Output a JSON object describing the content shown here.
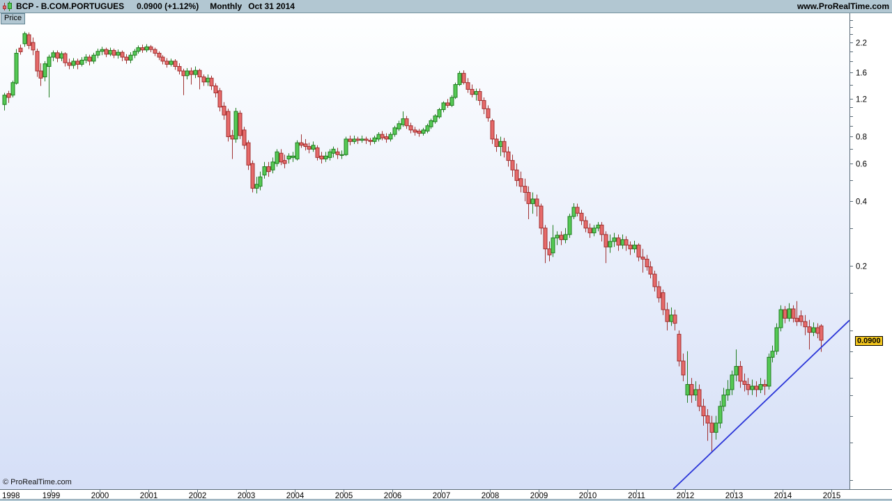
{
  "header": {
    "symbol_title": "BCP - B.COM.PORTUGUES",
    "last_price": "0.0900",
    "change": "(+1.12%)",
    "timeframe": "Monthly",
    "date_label": "Oct 31 2014",
    "site": "www.ProRealTime.com"
  },
  "price_tab": {
    "label": "Price"
  },
  "watermark": "© ProRealTime.com",
  "price_tag": {
    "value": "0.0900"
  },
  "colors": {
    "up_fill": "#55c955",
    "up_stroke": "#1f7d1f",
    "down_fill": "#e66a6a",
    "down_stroke": "#a03030",
    "trendline": "#2a35d8",
    "bar_bg": "#b2c7d2",
    "axis_line": "#5a6b77",
    "bg_top": "#feffff",
    "bg_bottom": "#d5dff7",
    "price_tag_bg": "#f0c41c"
  },
  "chart_data": {
    "type": "candlestick",
    "title": "BCP - B.COM.PORTUGUES",
    "timeframe": "Monthly",
    "scale": "logarithmic",
    "last": {
      "price": 0.09,
      "date": "Oct 31 2014",
      "change_pct": 1.12
    },
    "x_axis": {
      "start_year": 1998,
      "labels": [
        "1998",
        "1999",
        "2000",
        "2001",
        "2002",
        "2003",
        "2004",
        "2005",
        "2006",
        "2007",
        "2008",
        "2009",
        "2010",
        "2011",
        "2012",
        "2013",
        "2014",
        "2015"
      ]
    },
    "y_axis": {
      "ticks": [
        2.8,
        2.6,
        2.4,
        2.2,
        2.0,
        1.8,
        1.6,
        1.4,
        1.2,
        1.1,
        1.0,
        0.9,
        0.8,
        0.7,
        0.6,
        0.5,
        0.4,
        0.3,
        0.2,
        0.15,
        0.1,
        0.08,
        0.06,
        0.05,
        0.04,
        0.03,
        0.02
      ],
      "labeled_ticks": [
        "2.2",
        "1.6",
        "1.2",
        "0.8",
        "0.6",
        "0.4",
        "0.2"
      ]
    },
    "trendline": {
      "from": {
        "year": 2011.757,
        "price": 0.0182
      },
      "to": {
        "year": 2015.37,
        "price": 0.1115
      }
    },
    "ohlc_start": "1998-01",
    "ohlc": [
      [
        1.13,
        1.28,
        1.06,
        1.25
      ],
      [
        1.27,
        1.31,
        1.15,
        1.22
      ],
      [
        1.25,
        1.46,
        1.22,
        1.43
      ],
      [
        1.42,
        2.05,
        1.4,
        1.96
      ],
      [
        2.07,
        2.15,
        1.93,
        1.99
      ],
      [
        2.17,
        2.47,
        2.1,
        2.42
      ],
      [
        2.39,
        2.45,
        2.05,
        2.13
      ],
      [
        2.2,
        2.32,
        1.92,
        2.03
      ],
      [
        2.0,
        2.06,
        1.52,
        1.62
      ],
      [
        1.62,
        1.76,
        1.38,
        1.5
      ],
      [
        1.52,
        1.8,
        1.45,
        1.75
      ],
      [
        1.7,
        1.93,
        1.22,
        1.88
      ],
      [
        1.88,
        2.02,
        1.8,
        1.97
      ],
      [
        1.97,
        2.02,
        1.78,
        1.86
      ],
      [
        1.86,
        2.0,
        1.8,
        1.95
      ],
      [
        1.95,
        1.98,
        1.7,
        1.77
      ],
      [
        1.77,
        1.85,
        1.65,
        1.72
      ],
      [
        1.72,
        1.86,
        1.66,
        1.8
      ],
      [
        1.8,
        1.85,
        1.65,
        1.74
      ],
      [
        1.74,
        1.88,
        1.7,
        1.82
      ],
      [
        1.82,
        1.94,
        1.76,
        1.88
      ],
      [
        1.88,
        1.93,
        1.72,
        1.8
      ],
      [
        1.8,
        1.97,
        1.75,
        1.92
      ],
      [
        1.92,
        2.06,
        1.86,
        2.0
      ],
      [
        2.0,
        2.1,
        1.92,
        2.04
      ],
      [
        2.04,
        2.08,
        1.88,
        1.94
      ],
      [
        1.94,
        2.08,
        1.9,
        2.02
      ],
      [
        2.02,
        2.06,
        1.86,
        1.92
      ],
      [
        1.92,
        2.04,
        1.85,
        1.98
      ],
      [
        1.98,
        2.02,
        1.8,
        1.88
      ],
      [
        1.88,
        1.94,
        1.75,
        1.82
      ],
      [
        1.82,
        1.98,
        1.76,
        1.92
      ],
      [
        1.92,
        2.05,
        1.86,
        2.0
      ],
      [
        2.0,
        2.13,
        1.95,
        2.08
      ],
      [
        2.08,
        2.15,
        1.97,
        2.03
      ],
      [
        2.03,
        2.16,
        1.98,
        2.1
      ],
      [
        2.1,
        2.14,
        1.98,
        2.04
      ],
      [
        2.04,
        2.08,
        1.9,
        1.96
      ],
      [
        1.96,
        2.0,
        1.82,
        1.88
      ],
      [
        1.88,
        1.92,
        1.74,
        1.8
      ],
      [
        1.8,
        1.86,
        1.68,
        1.74
      ],
      [
        1.74,
        1.85,
        1.7,
        1.8
      ],
      [
        1.8,
        1.84,
        1.64,
        1.7
      ],
      [
        1.7,
        1.76,
        1.56,
        1.62
      ],
      [
        1.62,
        1.66,
        1.25,
        1.54
      ],
      [
        1.54,
        1.67,
        1.48,
        1.62
      ],
      [
        1.62,
        1.68,
        1.4,
        1.56
      ],
      [
        1.56,
        1.7,
        1.5,
        1.63
      ],
      [
        1.63,
        1.66,
        1.33,
        1.52
      ],
      [
        1.52,
        1.56,
        1.38,
        1.44
      ],
      [
        1.44,
        1.56,
        1.38,
        1.5
      ],
      [
        1.5,
        1.54,
        1.32,
        1.38
      ],
      [
        1.38,
        1.42,
        1.22,
        1.28
      ],
      [
        1.31,
        1.35,
        1.05,
        1.1
      ],
      [
        1.11,
        1.16,
        0.96,
        1.01
      ],
      [
        1.05,
        1.08,
        0.76,
        0.8
      ],
      [
        0.81,
        0.86,
        0.63,
        0.78
      ],
      [
        0.78,
        1.09,
        0.75,
        1.05
      ],
      [
        1.03,
        1.06,
        0.78,
        0.81
      ],
      [
        0.86,
        0.89,
        0.7,
        0.73
      ],
      [
        0.75,
        0.77,
        0.56,
        0.59
      ],
      [
        0.6,
        0.62,
        0.44,
        0.46
      ],
      [
        0.46,
        0.52,
        0.435,
        0.48
      ],
      [
        0.47,
        0.55,
        0.45,
        0.52
      ],
      [
        0.53,
        0.61,
        0.51,
        0.58
      ],
      [
        0.58,
        0.61,
        0.52,
        0.55
      ],
      [
        0.56,
        0.64,
        0.54,
        0.61
      ],
      [
        0.6,
        0.7,
        0.58,
        0.68
      ],
      [
        0.67,
        0.7,
        0.59,
        0.61
      ],
      [
        0.62,
        0.66,
        0.57,
        0.6
      ],
      [
        0.63,
        0.67,
        0.6,
        0.65
      ],
      [
        0.64,
        0.68,
        0.61,
        0.65
      ],
      [
        0.63,
        0.77,
        0.62,
        0.75
      ],
      [
        0.75,
        0.82,
        0.71,
        0.73
      ],
      [
        0.74,
        0.78,
        0.69,
        0.72
      ],
      [
        0.72,
        0.75,
        0.67,
        0.7
      ],
      [
        0.7,
        0.76,
        0.68,
        0.73
      ],
      [
        0.71,
        0.73,
        0.62,
        0.64
      ],
      [
        0.65,
        0.68,
        0.6,
        0.63
      ],
      [
        0.63,
        0.68,
        0.61,
        0.65
      ],
      [
        0.64,
        0.7,
        0.62,
        0.68
      ],
      [
        0.67,
        0.72,
        0.64,
        0.7
      ],
      [
        0.68,
        0.71,
        0.63,
        0.66
      ],
      [
        0.66,
        0.69,
        0.63,
        0.66
      ],
      [
        0.66,
        0.8,
        0.65,
        0.78
      ],
      [
        0.78,
        0.81,
        0.73,
        0.76
      ],
      [
        0.76,
        0.81,
        0.74,
        0.78
      ],
      [
        0.78,
        0.8,
        0.74,
        0.77
      ],
      [
        0.77,
        0.81,
        0.75,
        0.78
      ],
      [
        0.78,
        0.8,
        0.74,
        0.77
      ],
      [
        0.77,
        0.79,
        0.73,
        0.76
      ],
      [
        0.76,
        0.81,
        0.74,
        0.79
      ],
      [
        0.78,
        0.84,
        0.76,
        0.82
      ],
      [
        0.82,
        0.85,
        0.77,
        0.79
      ],
      [
        0.8,
        0.83,
        0.75,
        0.78
      ],
      [
        0.78,
        0.84,
        0.76,
        0.82
      ],
      [
        0.82,
        0.9,
        0.8,
        0.88
      ],
      [
        0.87,
        0.95,
        0.85,
        0.92
      ],
      [
        0.91,
        1.05,
        0.89,
        0.97
      ],
      [
        0.97,
        1.0,
        0.87,
        0.9
      ],
      [
        0.9,
        0.93,
        0.83,
        0.86
      ],
      [
        0.86,
        0.89,
        0.81,
        0.84
      ],
      [
        0.85,
        0.87,
        0.8,
        0.83
      ],
      [
        0.83,
        0.88,
        0.81,
        0.86
      ],
      [
        0.85,
        0.92,
        0.83,
        0.9
      ],
      [
        0.89,
        0.97,
        0.87,
        0.95
      ],
      [
        0.94,
        1.02,
        0.92,
        1.0
      ],
      [
        0.99,
        1.09,
        0.97,
        1.07
      ],
      [
        1.07,
        1.17,
        1.04,
        1.15
      ],
      [
        1.15,
        1.2,
        1.09,
        1.12
      ],
      [
        1.12,
        1.25,
        1.1,
        1.22
      ],
      [
        1.22,
        1.43,
        1.2,
        1.4
      ],
      [
        1.4,
        1.62,
        1.38,
        1.58
      ],
      [
        1.58,
        1.63,
        1.4,
        1.43
      ],
      [
        1.43,
        1.5,
        1.28,
        1.33
      ],
      [
        1.33,
        1.4,
        1.22,
        1.26
      ],
      [
        1.26,
        1.34,
        1.18,
        1.3
      ],
      [
        1.3,
        1.34,
        1.12,
        1.18
      ],
      [
        1.18,
        1.22,
        1.02,
        1.08
      ],
      [
        1.08,
        1.12,
        0.94,
        0.98
      ],
      [
        0.95,
        0.97,
        0.74,
        0.78
      ],
      [
        0.78,
        0.82,
        0.68,
        0.72
      ],
      [
        0.72,
        0.8,
        0.65,
        0.76
      ],
      [
        0.76,
        0.79,
        0.64,
        0.68
      ],
      [
        0.68,
        0.72,
        0.58,
        0.62
      ],
      [
        0.62,
        0.66,
        0.52,
        0.56
      ],
      [
        0.56,
        0.6,
        0.47,
        0.5
      ],
      [
        0.51,
        0.55,
        0.44,
        0.47
      ],
      [
        0.47,
        0.51,
        0.4,
        0.44
      ],
      [
        0.44,
        0.47,
        0.33,
        0.39
      ],
      [
        0.39,
        0.44,
        0.35,
        0.41
      ],
      [
        0.41,
        0.43,
        0.34,
        0.38
      ],
      [
        0.38,
        0.39,
        0.28,
        0.3
      ],
      [
        0.3,
        0.31,
        0.206,
        0.24
      ],
      [
        0.24,
        0.26,
        0.21,
        0.225
      ],
      [
        0.23,
        0.31,
        0.22,
        0.27
      ],
      [
        0.27,
        0.29,
        0.25,
        0.278
      ],
      [
        0.278,
        0.29,
        0.25,
        0.265
      ],
      [
        0.265,
        0.3,
        0.255,
        0.28
      ],
      [
        0.28,
        0.35,
        0.27,
        0.34
      ],
      [
        0.34,
        0.392,
        0.33,
        0.375
      ],
      [
        0.375,
        0.39,
        0.34,
        0.352
      ],
      [
        0.352,
        0.365,
        0.31,
        0.325
      ],
      [
        0.325,
        0.34,
        0.287,
        0.3
      ],
      [
        0.3,
        0.315,
        0.27,
        0.285
      ],
      [
        0.285,
        0.31,
        0.275,
        0.3
      ],
      [
        0.3,
        0.32,
        0.29,
        0.31
      ],
      [
        0.31,
        0.32,
        0.26,
        0.28
      ],
      [
        0.28,
        0.29,
        0.206,
        0.245
      ],
      [
        0.245,
        0.28,
        0.23,
        0.26
      ],
      [
        0.26,
        0.285,
        0.245,
        0.27
      ],
      [
        0.27,
        0.28,
        0.235,
        0.25
      ],
      [
        0.25,
        0.28,
        0.24,
        0.265
      ],
      [
        0.265,
        0.275,
        0.235,
        0.25
      ],
      [
        0.25,
        0.26,
        0.225,
        0.24
      ],
      [
        0.24,
        0.262,
        0.23,
        0.25
      ],
      [
        0.25,
        0.255,
        0.21,
        0.22
      ],
      [
        0.22,
        0.24,
        0.186,
        0.215
      ],
      [
        0.215,
        0.225,
        0.19,
        0.198
      ],
      [
        0.198,
        0.21,
        0.175,
        0.183
      ],
      [
        0.183,
        0.19,
        0.152,
        0.16
      ],
      [
        0.16,
        0.17,
        0.135,
        0.142
      ],
      [
        0.15,
        0.155,
        0.118,
        0.125
      ],
      [
        0.125,
        0.135,
        0.1,
        0.11
      ],
      [
        0.11,
        0.128,
        0.105,
        0.118
      ],
      [
        0.118,
        0.125,
        0.1,
        0.108
      ],
      [
        0.096,
        0.1,
        0.068,
        0.072
      ],
      [
        0.072,
        0.078,
        0.058,
        0.062
      ],
      [
        0.05,
        0.08,
        0.046,
        0.056
      ],
      [
        0.056,
        0.06,
        0.046,
        0.05
      ],
      [
        0.05,
        0.058,
        0.047,
        0.053
      ],
      [
        0.053,
        0.056,
        0.042,
        0.0443
      ],
      [
        0.0443,
        0.048,
        0.036,
        0.04
      ],
      [
        0.04,
        0.043,
        0.0306,
        0.037
      ],
      [
        0.037,
        0.04,
        0.027,
        0.0335
      ],
      [
        0.0335,
        0.04,
        0.031,
        0.037
      ],
      [
        0.037,
        0.047,
        0.035,
        0.0443
      ],
      [
        0.0443,
        0.054,
        0.042,
        0.05
      ],
      [
        0.05,
        0.0587,
        0.047,
        0.053
      ],
      [
        0.053,
        0.065,
        0.05,
        0.062
      ],
      [
        0.062,
        0.0815,
        0.058,
        0.068
      ],
      [
        0.068,
        0.072,
        0.054,
        0.058
      ],
      [
        0.058,
        0.063,
        0.052,
        0.056
      ],
      [
        0.056,
        0.06,
        0.05,
        0.053
      ],
      [
        0.053,
        0.059,
        0.05,
        0.055
      ],
      [
        0.055,
        0.058,
        0.049,
        0.053
      ],
      [
        0.053,
        0.06,
        0.051,
        0.056
      ],
      [
        0.056,
        0.059,
        0.05,
        0.055
      ],
      [
        0.055,
        0.078,
        0.053,
        0.075
      ],
      [
        0.075,
        0.085,
        0.071,
        0.08
      ],
      [
        0.08,
        0.108,
        0.077,
        0.103
      ],
      [
        0.103,
        0.131,
        0.099,
        0.125
      ],
      [
        0.125,
        0.13,
        0.108,
        0.114
      ],
      [
        0.114,
        0.134,
        0.11,
        0.126
      ],
      [
        0.126,
        0.131,
        0.109,
        0.114
      ],
      [
        0.114,
        0.137,
        0.105,
        0.11
      ],
      [
        0.117,
        0.124,
        0.105,
        0.11
      ],
      [
        0.11,
        0.118,
        0.095,
        0.104
      ],
      [
        0.104,
        0.112,
        0.0815,
        0.098
      ],
      [
        0.098,
        0.109,
        0.094,
        0.103
      ],
      [
        0.103,
        0.108,
        0.092,
        0.097
      ],
      [
        0.105,
        0.107,
        0.0795,
        0.09
      ]
    ]
  }
}
